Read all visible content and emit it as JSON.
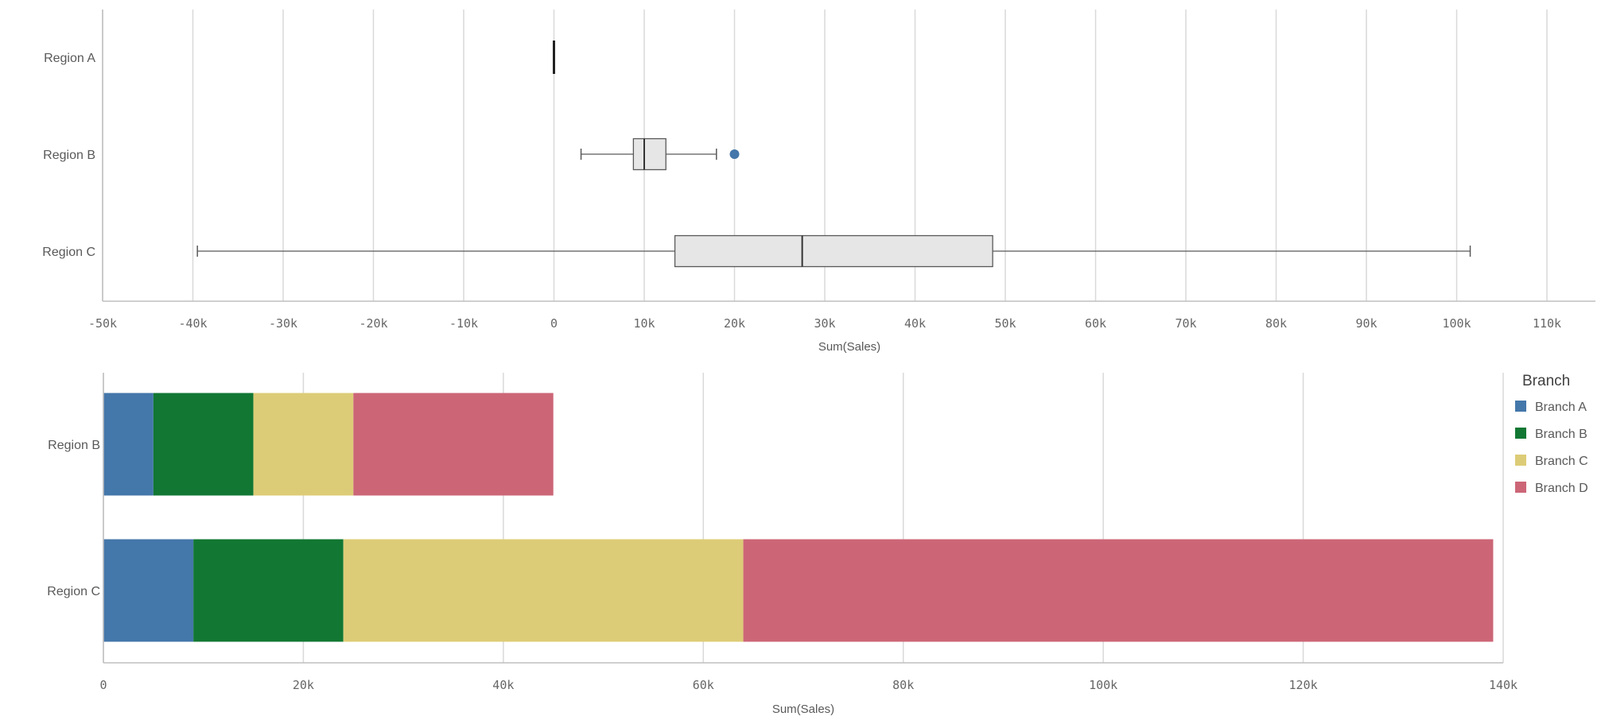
{
  "chart_data": [
    {
      "type": "boxplot",
      "orientation": "horizontal",
      "xlabel": "Sum(Sales)",
      "xlim": [
        -53000,
        113000
      ],
      "ticks": [
        -50000,
        -40000,
        -30000,
        -20000,
        -10000,
        0,
        10000,
        20000,
        30000,
        40000,
        50000,
        60000,
        70000,
        80000,
        90000,
        100000,
        110000
      ],
      "tick_labels": [
        "-50k",
        "-40k",
        "-30k",
        "-20k",
        "-10k",
        "0",
        "10k",
        "20k",
        "30k",
        "40k",
        "50k",
        "60k",
        "70k",
        "80k",
        "90k",
        "100k",
        "110k"
      ],
      "grid": true,
      "categories": [
        "Region A",
        "Region B",
        "Region C"
      ],
      "boxes": [
        {
          "label": "Region A",
          "whisker_low": 0,
          "q1": 0,
          "median": 0,
          "q3": 0,
          "whisker_high": 0,
          "outliers": []
        },
        {
          "label": "Region B",
          "whisker_low": 3000,
          "q1": 8800,
          "median": 10000,
          "q3": 12400,
          "whisker_high": 18000,
          "outliers": [
            20000
          ]
        },
        {
          "label": "Region C",
          "whisker_low": -39500,
          "q1": 13400,
          "median": 27500,
          "q3": 48600,
          "whisker_high": 101500,
          "outliers": []
        }
      ],
      "colors": {
        "box_fill": "#e6e6e6",
        "box_stroke": "#595959",
        "outlier": "#4477aa"
      }
    },
    {
      "type": "bar",
      "stacked": true,
      "orientation": "horizontal",
      "xlabel": "Sum(Sales)",
      "xlim": [
        0,
        140000
      ],
      "ticks": [
        0,
        20000,
        40000,
        60000,
        80000,
        100000,
        120000,
        140000
      ],
      "tick_labels": [
        "0",
        "20k",
        "40k",
        "60k",
        "80k",
        "100k",
        "120k",
        "140k"
      ],
      "grid": true,
      "categories": [
        "Region B",
        "Region C"
      ],
      "legend_title": "Branch",
      "legend_position": "right",
      "series": [
        {
          "name": "Branch A",
          "color": "#4477aa",
          "values": [
            5000,
            9000
          ]
        },
        {
          "name": "Branch B",
          "color": "#117733",
          "values": [
            10000,
            15000
          ]
        },
        {
          "name": "Branch C",
          "color": "#ddcc77",
          "values": [
            10000,
            40000
          ]
        },
        {
          "name": "Branch D",
          "color": "#cc6677",
          "values": [
            20000,
            75000
          ]
        }
      ]
    }
  ]
}
